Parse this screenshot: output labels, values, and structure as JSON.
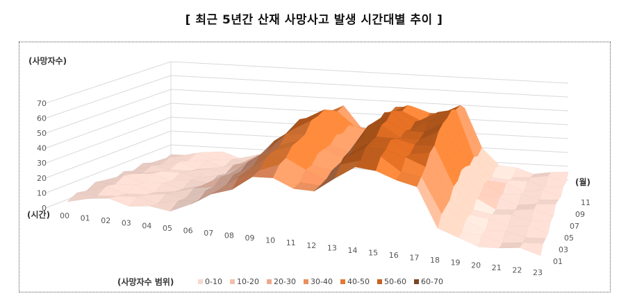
{
  "header": {
    "title": "[ 최근 5년간 산재 사망사고 발생 시간대별 추이 ]"
  },
  "chart_data": {
    "type": "surface",
    "title": "[ 최근 5년간 산재 사망사고 발생 시간대별 추이 ]",
    "zlabel": "(사망자수)",
    "xlabel": "(시간)",
    "ylabel": "(월)",
    "zlim": [
      0,
      70
    ],
    "z_ticks": [
      "0",
      "10",
      "20",
      "30",
      "40",
      "50",
      "60",
      "70"
    ],
    "x_categories": [
      "00",
      "01",
      "02",
      "03",
      "04",
      "05",
      "06",
      "07",
      "08",
      "09",
      "10",
      "11",
      "12",
      "13",
      "14",
      "15",
      "16",
      "17",
      "18",
      "19",
      "20",
      "21",
      "22",
      "23"
    ],
    "y_tick_labels": [
      "01",
      "03",
      "05",
      "07",
      "09",
      "11"
    ],
    "legend_title": "(사망자수 범위)",
    "legend": [
      {
        "label": "0-10",
        "color": "#f7d9cf"
      },
      {
        "label": "10-20",
        "color": "#f1c0ae"
      },
      {
        "label": "20-30",
        "color": "#eda98c"
      },
      {
        "label": "30-40",
        "color": "#ea8f5e"
      },
      {
        "label": "40-50",
        "color": "#e27a35"
      },
      {
        "label": "50-60",
        "color": "#c9621f"
      },
      {
        "label": "60-70",
        "color": "#7a4426"
      }
    ],
    "monthly_profile": [
      [
        3,
        5,
        5,
        4,
        4,
        5,
        10,
        17,
        25,
        34,
        38,
        30,
        28,
        42,
        50,
        52,
        45,
        40,
        15,
        8,
        6,
        5,
        5,
        4
      ],
      [
        4,
        7,
        6,
        5,
        5,
        7,
        12,
        20,
        30,
        40,
        44,
        35,
        32,
        48,
        55,
        58,
        52,
        50,
        20,
        10,
        7,
        6,
        6,
        5
      ],
      [
        5,
        8,
        7,
        6,
        6,
        8,
        14,
        22,
        34,
        45,
        48,
        38,
        30,
        50,
        58,
        55,
        50,
        55,
        25,
        12,
        8,
        7,
        7,
        6
      ],
      [
        4,
        7,
        8,
        6,
        7,
        7,
        13,
        22,
        35,
        48,
        55,
        40,
        35,
        52,
        60,
        50,
        56,
        62,
        26,
        12,
        9,
        8,
        8,
        7
      ],
      [
        3,
        6,
        7,
        6,
        5,
        7,
        12,
        21,
        33,
        46,
        50,
        38,
        30,
        50,
        55,
        47,
        52,
        58,
        22,
        11,
        8,
        6,
        6,
        5
      ],
      [
        2,
        5,
        6,
        5,
        4,
        5,
        10,
        18,
        28,
        40,
        44,
        32,
        28,
        44,
        48,
        42,
        45,
        48,
        18,
        9,
        6,
        5,
        5,
        4
      ]
    ]
  }
}
